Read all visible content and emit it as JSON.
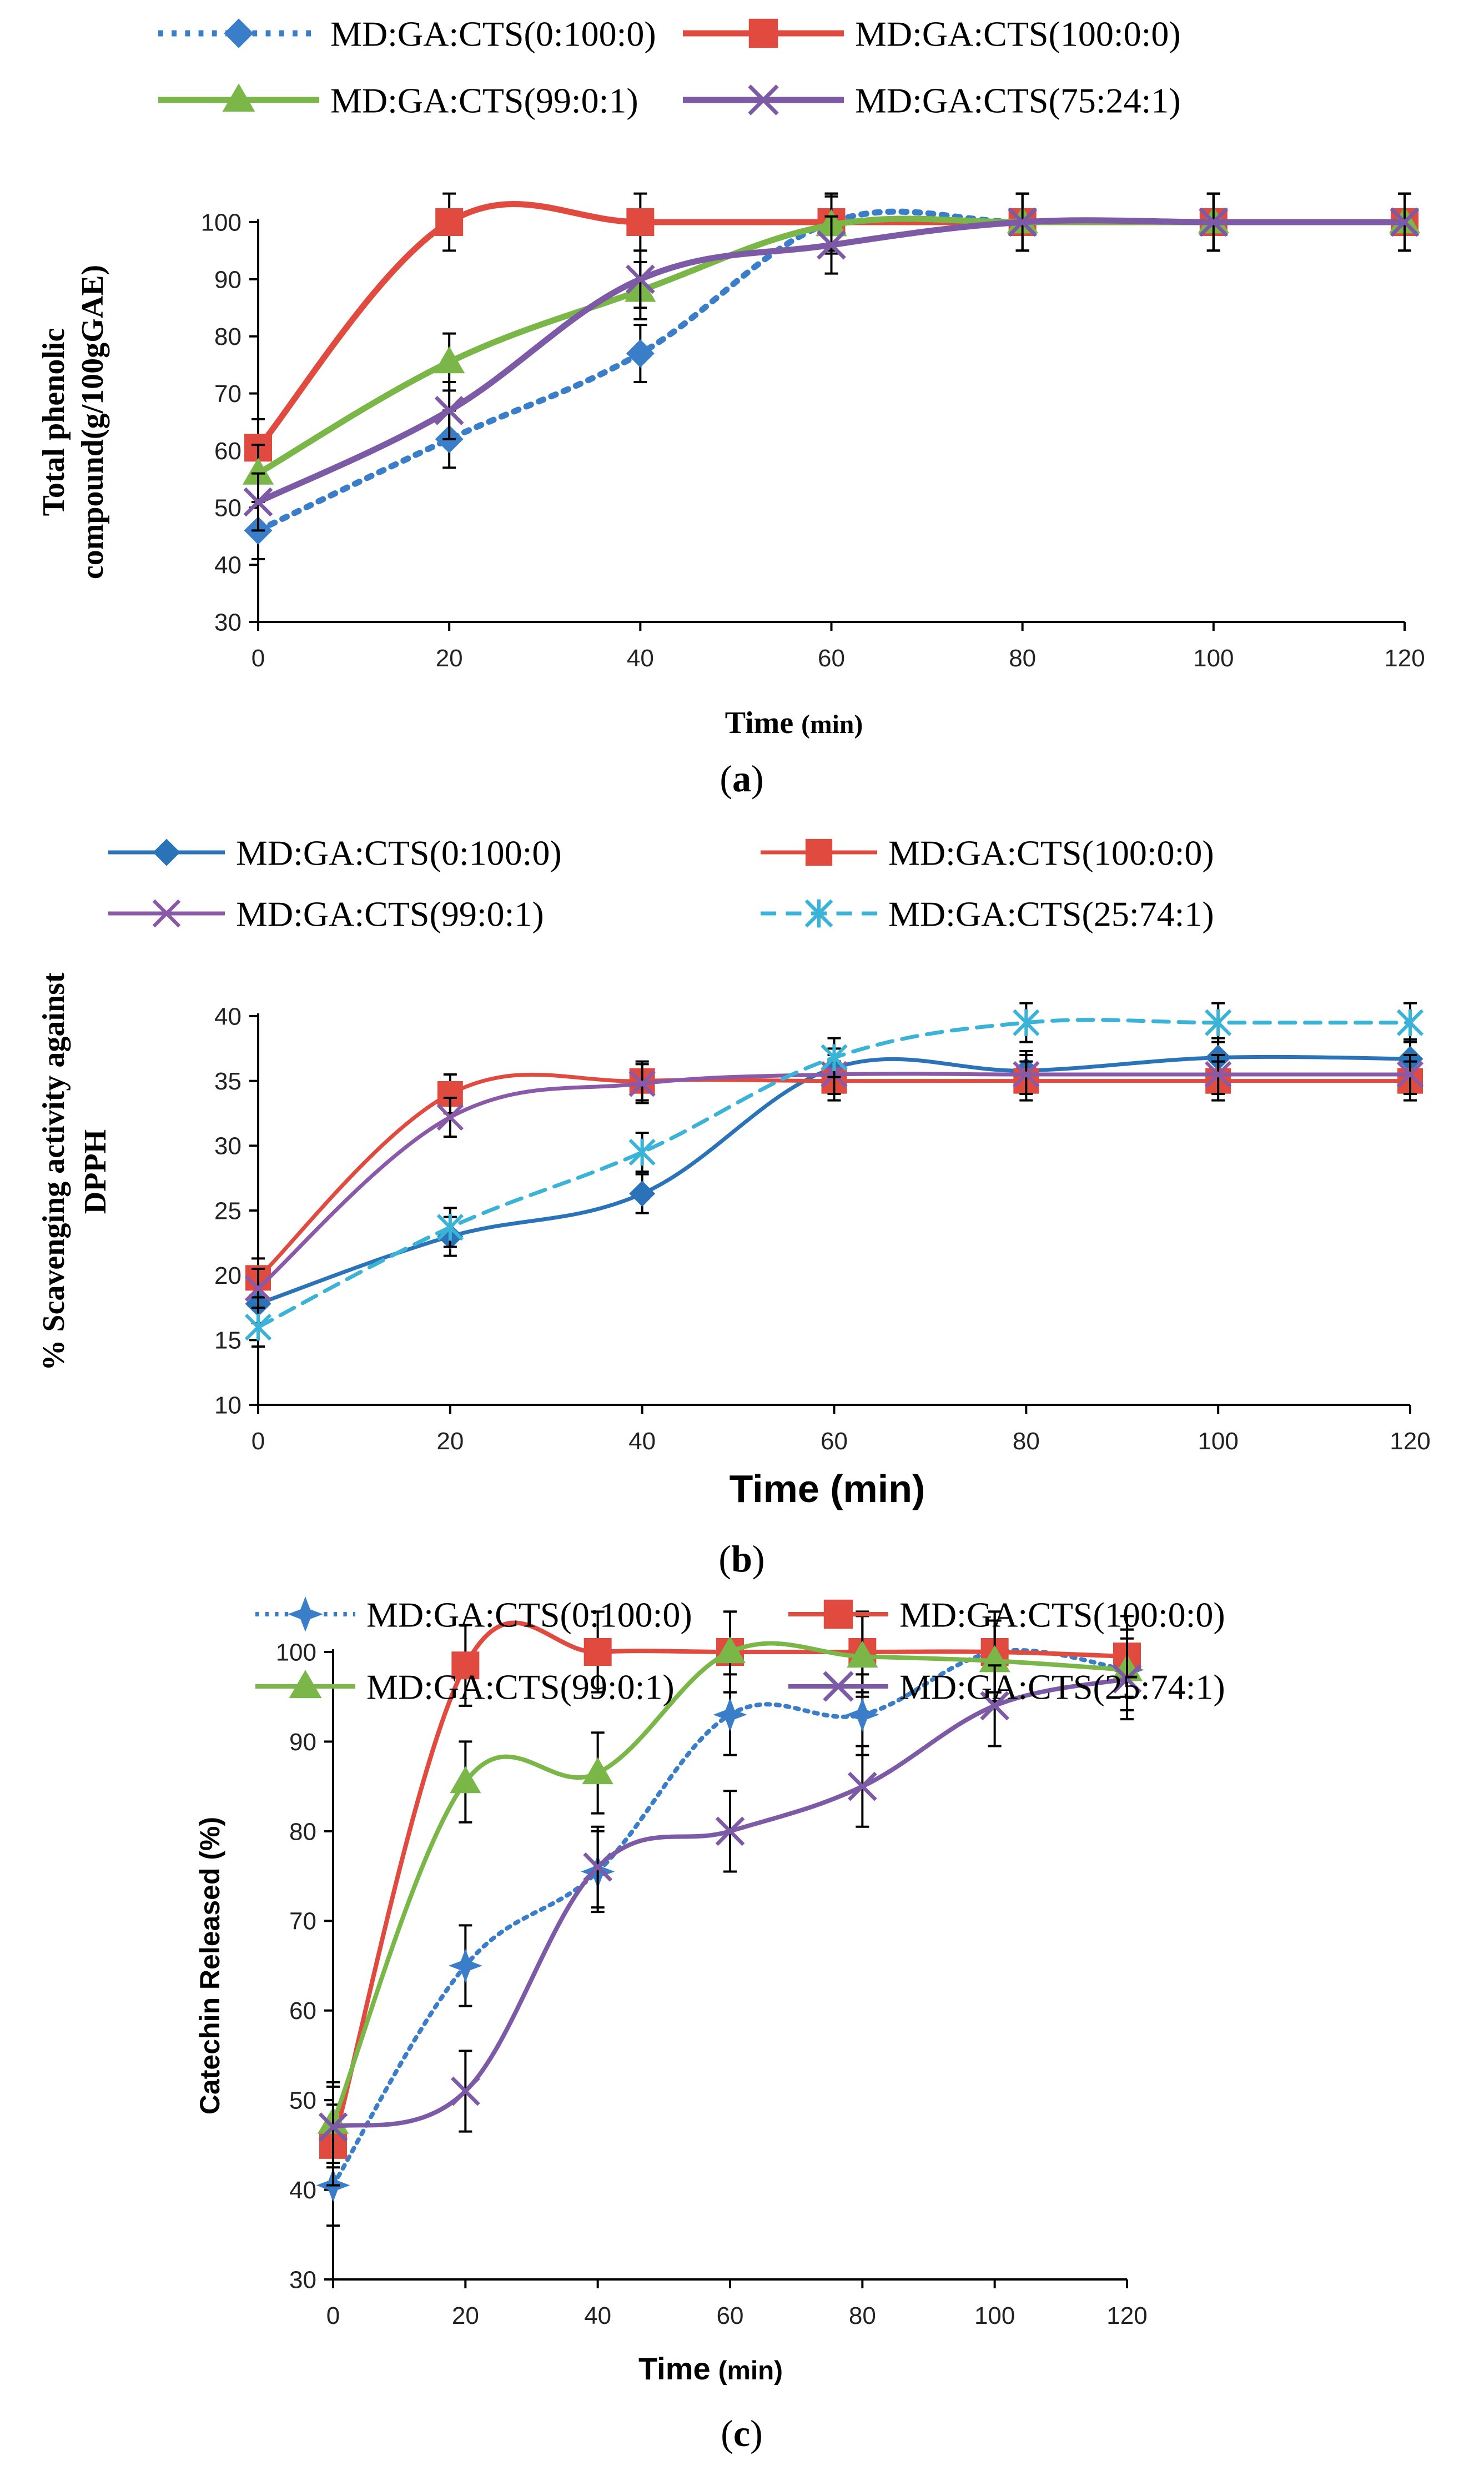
{
  "chart_data": [
    {
      "type": "line",
      "panel_label": "(a)",
      "panel_letter": "a",
      "title": "",
      "xlabel": "Time",
      "xlabel_unit": "(min)",
      "ylabel_line1": "Total phenolic",
      "ylabel_line2": "compound(g/100gGAE)",
      "xlim": [
        0,
        120
      ],
      "ylim": [
        30,
        100
      ],
      "x_ticks": [
        0,
        20,
        40,
        60,
        80,
        100,
        120
      ],
      "y_ticks": [
        30,
        40,
        50,
        60,
        70,
        80,
        90,
        100
      ],
      "legend_position": "top",
      "series": [
        {
          "name": "MD:GA:CTS(0:100:0)",
          "color": "#3a7dc9",
          "marker": "diamond",
          "dash": "dotted",
          "x": [
            0,
            20,
            40,
            60,
            80,
            100,
            120
          ],
          "values": [
            46,
            62,
            77,
            100,
            100,
            100,
            100
          ]
        },
        {
          "name": "MD:GA:CTS(100:0:0)",
          "color": "#e04a3f",
          "marker": "square",
          "dash": "solid",
          "x": [
            0,
            20,
            40,
            60,
            80,
            100,
            120
          ],
          "values": [
            60.5,
            100,
            100,
            100,
            100,
            100,
            100
          ]
        },
        {
          "name": "MD:GA:CTS(99:0:1)",
          "color": "#7ab648",
          "marker": "triangle",
          "dash": "solid",
          "x": [
            0,
            20,
            40,
            60,
            80,
            100,
            120
          ],
          "values": [
            56,
            75.5,
            88,
            99.5,
            100,
            100,
            100
          ]
        },
        {
          "name": "MD:GA:CTS(75:24:1)",
          "color": "#7d5aa6",
          "marker": "x",
          "dash": "solid",
          "x": [
            0,
            20,
            40,
            60,
            80,
            100,
            120
          ],
          "values": [
            51,
            67,
            90,
            96,
            100,
            100,
            100
          ]
        }
      ]
    },
    {
      "type": "line",
      "panel_label": "(b)",
      "panel_letter": "b",
      "title": "",
      "xlabel": "Time (min)",
      "ylabel_line1": "% Scavenging activity against",
      "ylabel_line2": "DPPH",
      "xlim": [
        0,
        120
      ],
      "ylim": [
        10,
        40
      ],
      "x_ticks": [
        0,
        20,
        40,
        60,
        80,
        100,
        120
      ],
      "y_ticks": [
        10,
        15,
        20,
        25,
        30,
        35,
        40
      ],
      "legend_position": "top",
      "series": [
        {
          "name": "MD:GA:CTS(0:100:0)",
          "color": "#2b73b8",
          "marker": "diamond",
          "dash": "solid",
          "x": [
            0,
            20,
            40,
            60,
            80,
            100,
            120
          ],
          "values": [
            17.8,
            23,
            26.3,
            36,
            35.8,
            36.8,
            36.7
          ]
        },
        {
          "name": "MD:GA:CTS(100:0:0)",
          "color": "#e04a3f",
          "marker": "square",
          "dash": "solid",
          "x": [
            0,
            20,
            40,
            60,
            80,
            100,
            120
          ],
          "values": [
            19.8,
            34,
            35,
            35,
            35,
            35,
            35
          ]
        },
        {
          "name": "MD:GA:CTS(99:0:1)",
          "color": "#8a5aa8",
          "marker": "x",
          "dash": "solid",
          "x": [
            0,
            20,
            40,
            60,
            80,
            100,
            120
          ],
          "values": [
            19,
            32.2,
            34.8,
            35.5,
            35.5,
            35.5,
            35.5
          ]
        },
        {
          "name": "MD:GA:CTS(25:74:1)",
          "color": "#3bb3d6",
          "marker": "asterisk",
          "dash": "dashed",
          "x": [
            0,
            20,
            40,
            60,
            80,
            100,
            120
          ],
          "values": [
            16,
            23.7,
            29.5,
            36.8,
            39.5,
            39.5,
            39.5
          ]
        }
      ]
    },
    {
      "type": "line",
      "panel_label": "(c)",
      "panel_letter": "c",
      "title": "",
      "xlabel": "Time",
      "xlabel_unit": "(min)",
      "ylabel_line1": "Catechin Released (%)",
      "xlim": [
        0,
        120
      ],
      "ylim": [
        30,
        100
      ],
      "x_ticks": [
        0,
        20,
        40,
        60,
        80,
        100,
        120
      ],
      "y_ticks": [
        30,
        40,
        50,
        60,
        70,
        80,
        90,
        100
      ],
      "legend_position": "top",
      "series": [
        {
          "name": "MD:GA:CTS(0:100:0)",
          "color": "#3a7dc9",
          "marker": "star",
          "dash": "dotted",
          "x": [
            0,
            20,
            40,
            60,
            80,
            100,
            120
          ],
          "values": [
            40.5,
            65,
            75.5,
            93,
            93,
            100,
            98
          ]
        },
        {
          "name": "MD:GA:CTS(100:0:0)",
          "color": "#e04a3f",
          "marker": "square",
          "dash": "solid",
          "x": [
            0,
            20,
            40,
            60,
            80,
            100,
            120
          ],
          "values": [
            45,
            98.5,
            100,
            100,
            100,
            100,
            99.5
          ]
        },
        {
          "name": "MD:GA:CTS(99:0:1)",
          "color": "#7ab648",
          "marker": "triangle",
          "dash": "solid",
          "x": [
            0,
            20,
            40,
            60,
            80,
            100,
            120
          ],
          "values": [
            47.5,
            85.5,
            86.5,
            100,
            99.5,
            99,
            98
          ]
        },
        {
          "name": "MD:GA:CTS(25:74:1)",
          "color": "#7d5aa6",
          "marker": "x",
          "dash": "solid",
          "x": [
            0,
            20,
            40,
            60,
            80,
            100,
            120
          ],
          "values": [
            47,
            51,
            76,
            80,
            85,
            94,
            97
          ]
        }
      ]
    }
  ]
}
